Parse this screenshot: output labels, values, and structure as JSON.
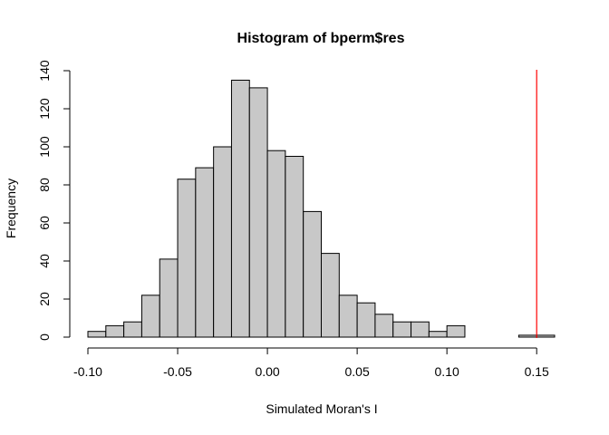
{
  "chart_data": {
    "type": "histogram",
    "title": "Histogram of bperm$res",
    "xlabel": "Simulated Moran's I",
    "ylabel": "Frequency",
    "bin_edges": [
      -0.1,
      -0.09,
      -0.08,
      -0.07,
      -0.06,
      -0.05,
      -0.04,
      -0.03,
      -0.02,
      -0.01,
      0.0,
      0.01,
      0.02,
      0.03,
      0.04,
      0.05,
      0.06,
      0.07,
      0.08,
      0.09,
      0.1,
      0.11,
      0.12,
      0.13,
      0.14,
      0.15,
      0.16
    ],
    "counts": [
      3,
      6,
      8,
      22,
      41,
      83,
      89,
      100,
      135,
      131,
      98,
      95,
      66,
      44,
      22,
      18,
      12,
      8,
      8,
      3,
      6,
      0,
      0,
      0,
      1,
      1
    ],
    "xlim": [
      -0.1,
      0.16
    ],
    "ylim": [
      0,
      140
    ],
    "x_ticks": [
      -0.1,
      -0.05,
      0.0,
      0.05,
      0.1,
      0.15
    ],
    "x_tick_labels": [
      "-0.10",
      "-0.05",
      "0.00",
      "0.05",
      "0.10",
      "0.15"
    ],
    "y_ticks": [
      0,
      20,
      40,
      60,
      80,
      100,
      120,
      140
    ],
    "y_tick_labels": [
      "0",
      "20",
      "40",
      "60",
      "80",
      "100",
      "120",
      "140"
    ],
    "reference_line": {
      "x": 0.15,
      "color": "#ff0000"
    },
    "bar_fill": "#c8c8c8",
    "bar_stroke": "#000000",
    "grid": false,
    "legend": "none"
  }
}
